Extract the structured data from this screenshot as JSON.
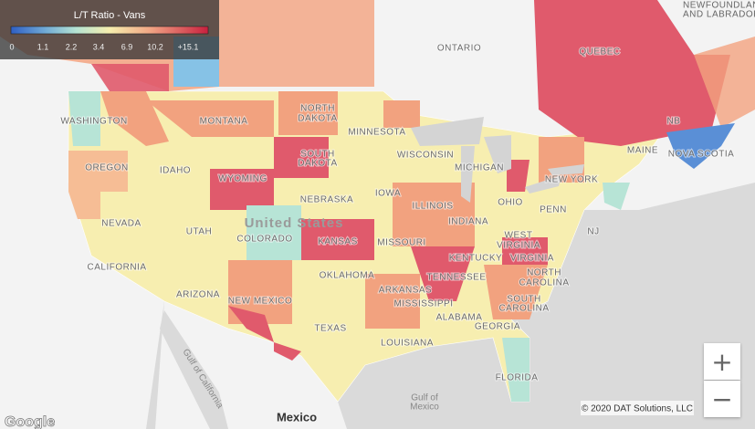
{
  "legend": {
    "title": "L/T Ratio - Vans",
    "ticks": [
      "0",
      "1.1",
      "2.2",
      "3.4",
      "6.9",
      "10.2",
      "+15.1"
    ]
  },
  "map_labels": [
    "NEWFOUNDLAND",
    "AND LABRADOR",
    "ONTARIO",
    "QUEBEC",
    "WASHINGTON",
    "MONTANA",
    "NORTH",
    "DAKOTA",
    "MINNESOTA",
    "NB",
    "OREGON",
    "IDAHO",
    "SOUTH",
    "DAKOTA",
    "WISCONSIN",
    "MICHIGAN",
    "MAINE",
    "NOVA SCOTIA",
    "WYOMING",
    "NEBRASKA",
    "IOWA",
    "NEW YORK",
    "NEVADA",
    "UTAH",
    "United States",
    "ILLINOIS",
    "INDIANA",
    "OHIO",
    "PENN",
    "NJ",
    "COLORADO",
    "KANSAS",
    "MISSOURI",
    "WEST",
    "VIRGINIA",
    "VIRGINIA",
    "CALIFORNIA",
    "KENTUCKY",
    "OKLAHOMA",
    "NORTH",
    "CAROLINA",
    "ARIZONA",
    "NEW MEXICO",
    "ARKANSAS",
    "TENNESSEE",
    "SOUTH",
    "CAROLINA",
    "MISSISSIPPI",
    "ALABAMA",
    "GEORGIA",
    "TEXAS",
    "LOUISIANA",
    "FLORIDA",
    "Gulf of",
    "Mexico",
    "Mexico",
    "Gulf of California"
  ],
  "attribution": {
    "google": "Google",
    "copyright": "© 2020 DAT Solutions, LLC"
  },
  "controls": {
    "zoom_in": "+",
    "zoom_out": "−"
  }
}
